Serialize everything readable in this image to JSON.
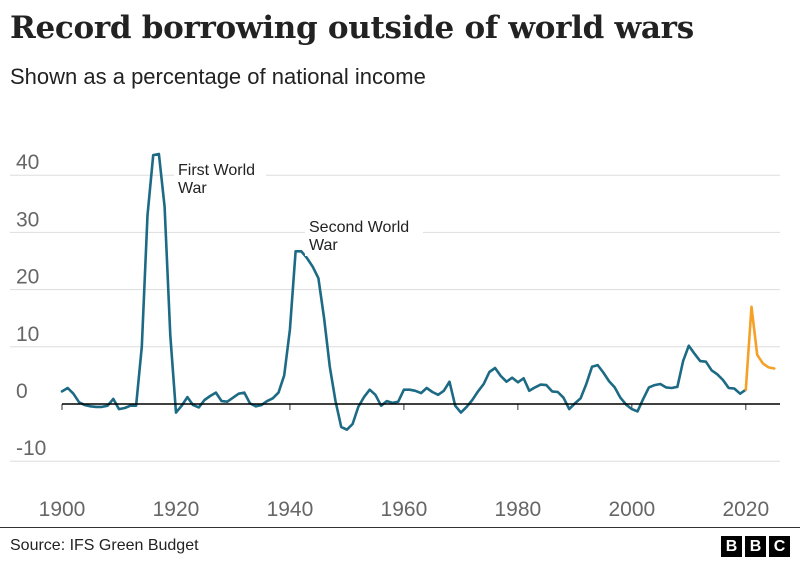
{
  "title": "Record borrowing outside of world wars",
  "subtitle": "Shown as a percentage of national income",
  "source": "Source: IFS Green Budget",
  "logo": "BBC",
  "colors": {
    "historical": "#1d6a85",
    "forecast": "#f5a027",
    "grid": "#dddddd",
    "zero": "#000000"
  },
  "chart_data": {
    "type": "line",
    "title": "Record borrowing outside of world wars",
    "subtitle": "Shown as a percentage of national income",
    "xlim": [
      1900,
      2026
    ],
    "ylim": [
      -13,
      45
    ],
    "xticks": [
      1900,
      1920,
      1940,
      1960,
      1980,
      2000,
      2020
    ],
    "yticks": [
      -10,
      0,
      10,
      20,
      30,
      40
    ],
    "grid": true,
    "annotations": [
      {
        "lines": [
          "First World",
          "War"
        ],
        "x": 1917,
        "y": 43.5
      },
      {
        "lines": [
          "Second World",
          "War"
        ],
        "x": 1943,
        "y": 27
      }
    ],
    "series": [
      {
        "key": "historical",
        "x": [
          1900,
          1901,
          1902,
          1903,
          1904,
          1905,
          1906,
          1907,
          1908,
          1909,
          1910,
          1911,
          1912,
          1913,
          1914,
          1915,
          1916,
          1917,
          1918,
          1919,
          1920,
          1921,
          1922,
          1923,
          1924,
          1925,
          1926,
          1927,
          1928,
          1929,
          1930,
          1931,
          1932,
          1933,
          1934,
          1935,
          1936,
          1937,
          1938,
          1939,
          1940,
          1941,
          1942,
          1943,
          1944,
          1945,
          1946,
          1947,
          1948,
          1949,
          1950,
          1951,
          1952,
          1953,
          1954,
          1955,
          1956,
          1957,
          1958,
          1959,
          1960,
          1961,
          1962,
          1963,
          1964,
          1965,
          1966,
          1967,
          1968,
          1969,
          1970,
          1971,
          1972,
          1973,
          1974,
          1975,
          1976,
          1977,
          1978,
          1979,
          1980,
          1981,
          1982,
          1983,
          1984,
          1985,
          1986,
          1987,
          1988,
          1989,
          1990,
          1991,
          1992,
          1993,
          1994,
          1995,
          1996,
          1997,
          1998,
          1999,
          2000,
          2001,
          2002,
          2003,
          2004,
          2005,
          2006,
          2007,
          2008,
          2009,
          2010,
          2011,
          2012,
          2013,
          2014,
          2015,
          2016,
          2017,
          2018,
          2019,
          2020
        ],
        "values": [
          2.2,
          2.8,
          1.8,
          0.3,
          -0.2,
          -0.4,
          -0.5,
          -0.5,
          -0.3,
          0.9,
          -0.9,
          -0.7,
          -0.3,
          -0.3,
          10,
          33,
          43.5,
          43.7,
          34.5,
          12,
          -1.5,
          -0.3,
          1.2,
          -0.2,
          -0.6,
          0.7,
          1.4,
          2,
          0.5,
          0.4,
          1.1,
          1.8,
          2,
          0.1,
          -0.4,
          -0.2,
          0.5,
          1,
          2,
          5,
          13,
          26.7,
          26.7,
          25.5,
          24,
          22,
          15,
          6.5,
          0.5,
          -4,
          -4.5,
          -3.5,
          -0.5,
          1.2,
          2.5,
          1.6,
          -0.3,
          0.5,
          0.2,
          0.4,
          2.5,
          2.5,
          2.3,
          1.9,
          2.8,
          2.1,
          1.6,
          2.3,
          3.9,
          -0.3,
          -1.5,
          -0.5,
          0.7,
          2.2,
          3.5,
          5.6,
          6.3,
          4.9,
          3.9,
          4.6,
          3.8,
          4.5,
          2.3,
          2.9,
          3.4,
          3.3,
          2.2,
          2.1,
          1.1,
          -0.9,
          0.1,
          1,
          3.5,
          6.5,
          6.8,
          5.5,
          4,
          2.9,
          1.1,
          -0.1,
          -0.9,
          -1.3,
          0.9,
          2.9,
          3.3,
          3.5,
          2.9,
          2.8,
          3,
          7.5,
          10.2,
          8.8,
          7.5,
          7.4,
          5.9,
          5.2,
          4.2,
          2.8,
          2.7,
          1.8,
          2.5
        ]
      },
      {
        "key": "forecast",
        "x": [
          2020,
          2021,
          2022,
          2023,
          2024,
          2025
        ],
        "values": [
          2.5,
          17,
          8.6,
          7.1,
          6.4,
          6.2
        ]
      }
    ]
  }
}
